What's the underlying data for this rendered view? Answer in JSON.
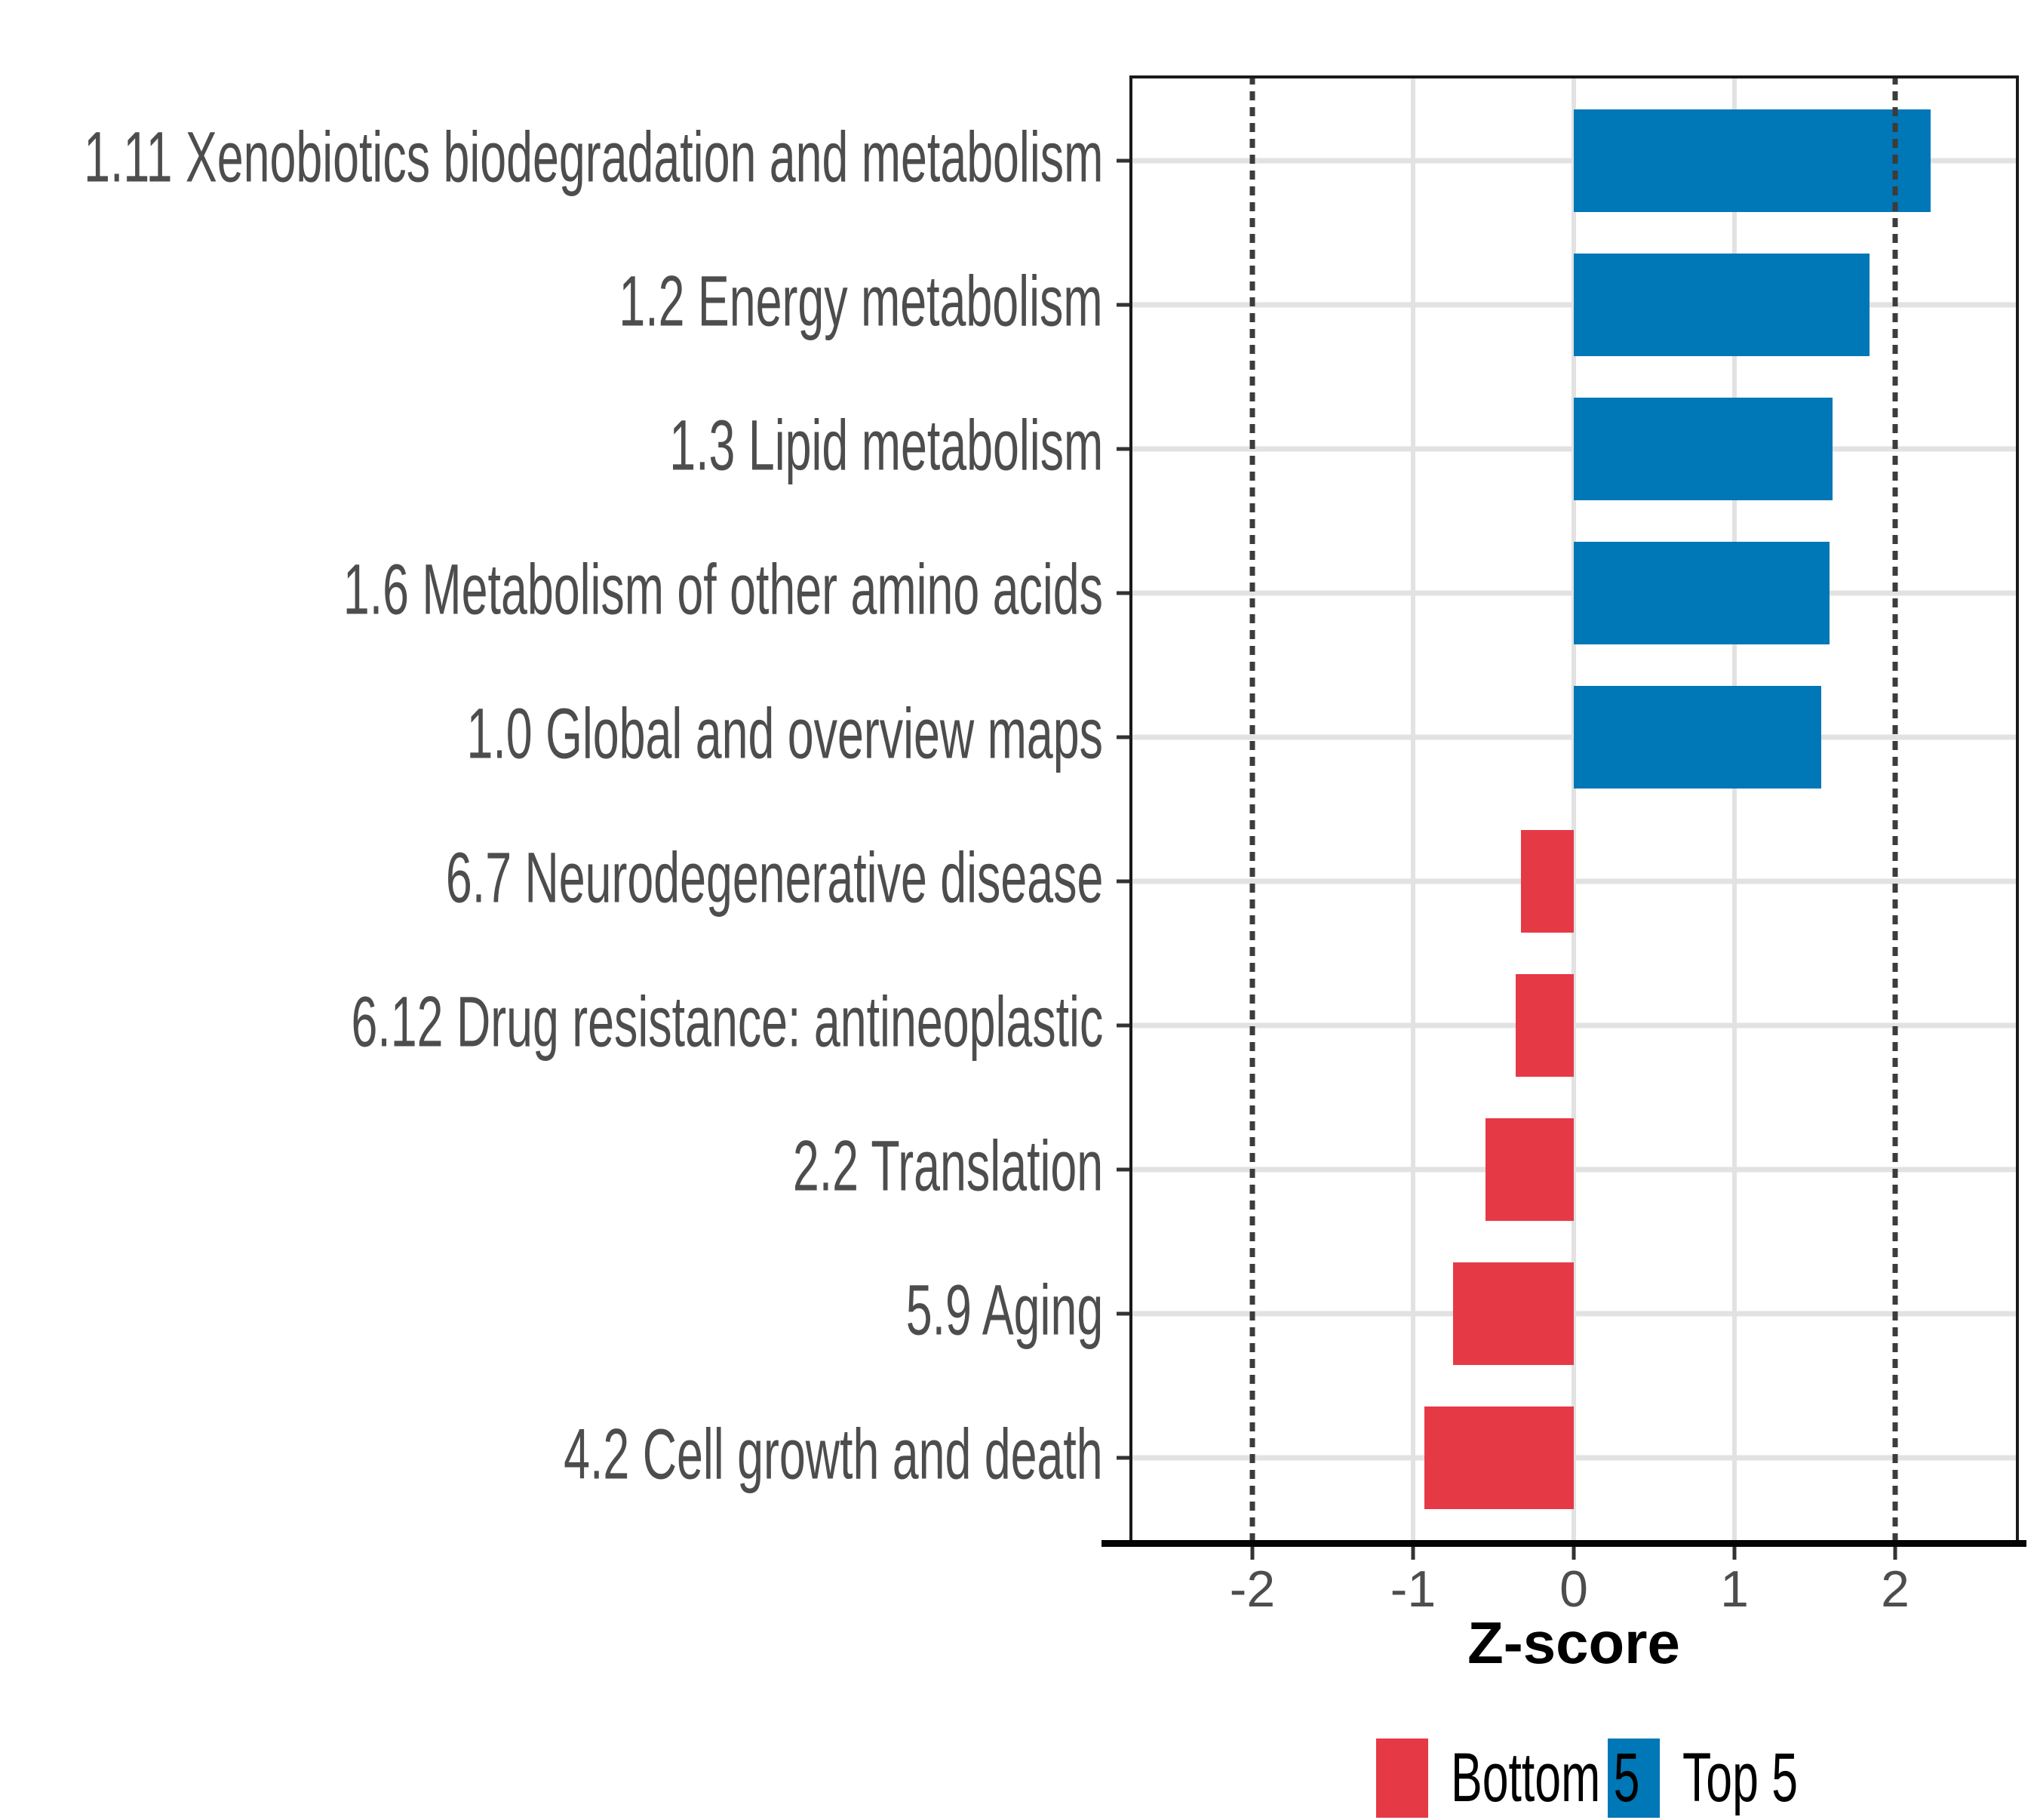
{
  "chart_data": {
    "type": "bar",
    "orientation": "horizontal",
    "title": "",
    "xlabel": "Z-score",
    "ylabel": "",
    "xlim": [
      -2.77,
      2.77
    ],
    "grid": true,
    "gridlines_x": [
      -1,
      0,
      1
    ],
    "reference_lines_x": [
      -2,
      2
    ],
    "x_ticks": [
      {
        "value": -2,
        "label": "-2"
      },
      {
        "value": -1,
        "label": "-1"
      },
      {
        "value": 0,
        "label": "0"
      },
      {
        "value": 1,
        "label": "1"
      },
      {
        "value": 2,
        "label": "2"
      }
    ],
    "categories": [
      "1.11 Xenobiotics biodegradation and metabolism",
      "1.2 Energy metabolism",
      "1.3 Lipid metabolism",
      "1.6 Metabolism of other amino acids",
      "1.0 Global and overview maps",
      "6.7 Neurodegenerative disease",
      "6.12 Drug resistance: antineoplastic",
      "2.2 Translation",
      "5.9 Aging",
      "4.2 Cell growth and death"
    ],
    "values": [
      2.22,
      1.84,
      1.61,
      1.59,
      1.54,
      -0.33,
      -0.36,
      -0.55,
      -0.75,
      -0.93
    ],
    "groups": [
      "Top 5",
      "Top 5",
      "Top 5",
      "Top 5",
      "Top 5",
      "Bottom 5",
      "Bottom 5",
      "Bottom 5",
      "Bottom 5",
      "Bottom 5"
    ],
    "legend": [
      {
        "label": "Bottom 5",
        "color": "#E63946"
      },
      {
        "label": "Top 5",
        "color": "#0077B6"
      }
    ],
    "legend_position": "bottom",
    "styles": {
      "grid_color": "#E2E2E2",
      "axis_text_color": "#4D4D4D",
      "axis_title_color": "#000000",
      "reference_line_color": "#3C3C3C",
      "panel_border_color": "#1A1A1A"
    }
  }
}
